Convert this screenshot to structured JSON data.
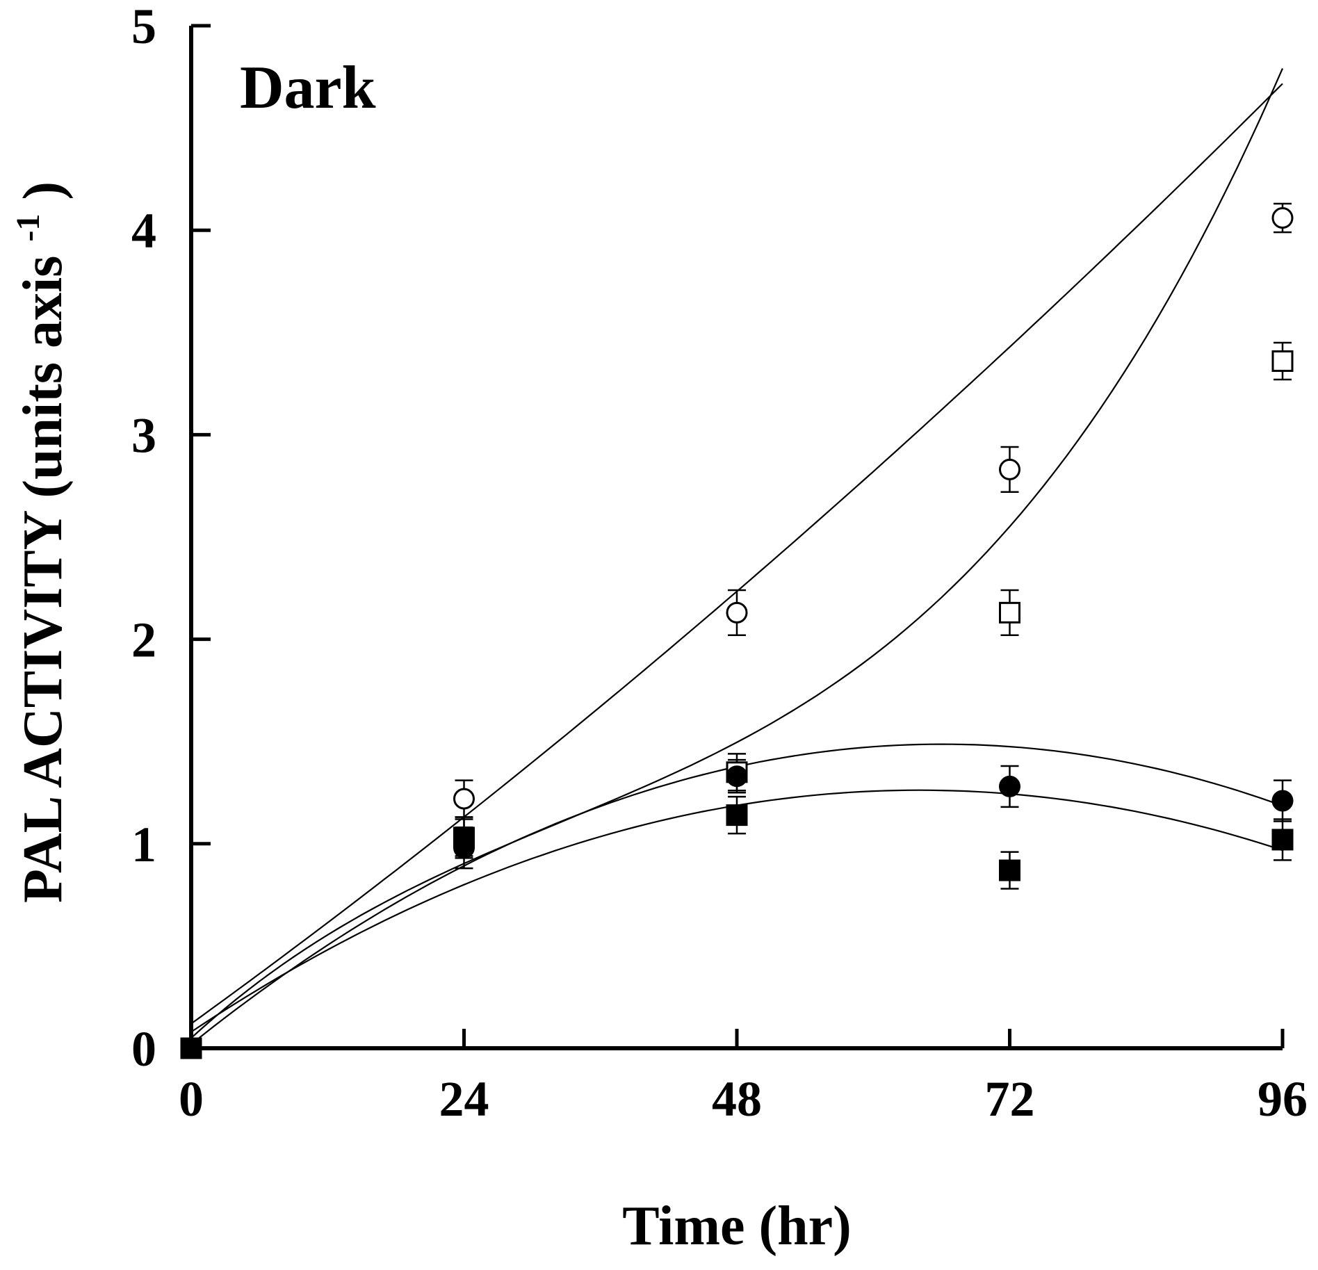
{
  "chart_data": {
    "type": "line",
    "title": "",
    "panel_label": "Dark",
    "xlabel": "Time (hr)",
    "ylabel_main": "PAL ACTIVITY (units axis",
    "ylabel_sup": "-1",
    "ylabel_close": ")",
    "xlim": [
      0,
      96
    ],
    "ylim": [
      0,
      5
    ],
    "xticks": [
      0,
      24,
      48,
      72,
      96
    ],
    "yticks": [
      0,
      1,
      2,
      3,
      4,
      5
    ],
    "grid": false,
    "legend": "none",
    "series": [
      {
        "name": "open-circle",
        "marker": "circle",
        "filled": false,
        "x": [
          0,
          24,
          48,
          72,
          96
        ],
        "y": [
          0,
          1.22,
          2.13,
          2.83,
          4.06
        ],
        "err": [
          0,
          0.09,
          0.11,
          0.11,
          0.07
        ],
        "fit": [
          0.12,
          0.0402,
          8e-05
        ]
      },
      {
        "name": "open-square",
        "marker": "square",
        "filled": false,
        "x": [
          0,
          24,
          48,
          72,
          96
        ],
        "y": [
          0,
          1.03,
          1.35,
          2.13,
          3.36
        ],
        "err": [
          0,
          0.09,
          0.09,
          0.11,
          0.09
        ],
        "fit": [
          0.05,
          0.051,
          -0.000853,
          8.71e-06
        ]
      },
      {
        "name": "filled-circle",
        "marker": "circle",
        "filled": true,
        "x": [
          0,
          24,
          48,
          72,
          96
        ],
        "y": [
          0,
          0.98,
          1.33,
          1.28,
          1.21
        ],
        "err": [
          0,
          0.1,
          0.08,
          0.1,
          0.1
        ],
        "fit": [
          0.02,
          0.0444,
          -0.000336
        ]
      },
      {
        "name": "filled-square",
        "marker": "square",
        "filled": true,
        "x": [
          0,
          24,
          48,
          72,
          96
        ],
        "y": [
          0,
          1.03,
          1.14,
          0.87,
          1.02
        ],
        "err": [
          0,
          0.1,
          0.09,
          0.09,
          0.1
        ],
        "fit": [
          0.08,
          0.0369,
          -0.000288
        ]
      }
    ]
  }
}
